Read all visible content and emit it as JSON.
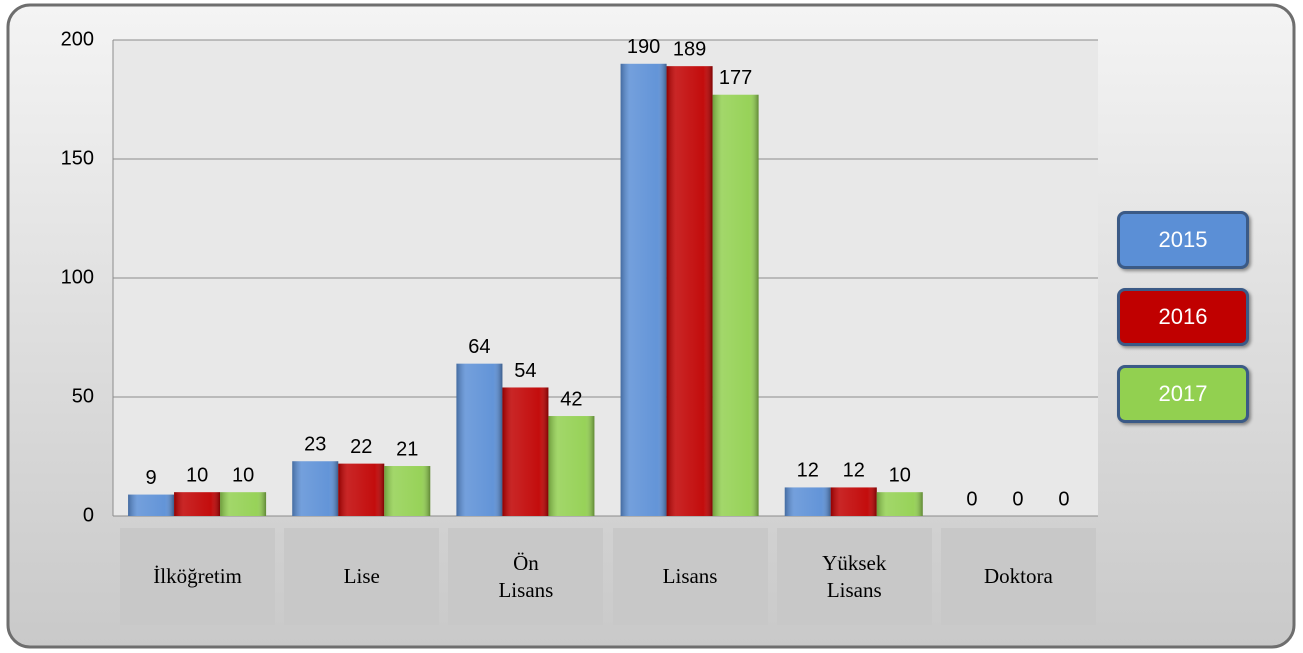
{
  "chart_data": {
    "type": "bar",
    "categories": [
      "İlköğretim",
      "Lise",
      "Ön Lisans",
      "Lisans",
      "Yüksek Lisans",
      "Doktora"
    ],
    "series": [
      {
        "name": "2015",
        "color": "#5b8fd6",
        "values": [
          9,
          23,
          64,
          190,
          12,
          0
        ]
      },
      {
        "name": "2016",
        "color": "#c00000",
        "values": [
          10,
          22,
          54,
          189,
          12,
          0
        ]
      },
      {
        "name": "2017",
        "color": "#92d050",
        "values": [
          10,
          21,
          42,
          177,
          10,
          0
        ]
      }
    ],
    "ylim": [
      0,
      200
    ],
    "yticks": [
      0,
      50,
      100,
      150,
      200
    ],
    "grid": true,
    "legend": "right"
  }
}
